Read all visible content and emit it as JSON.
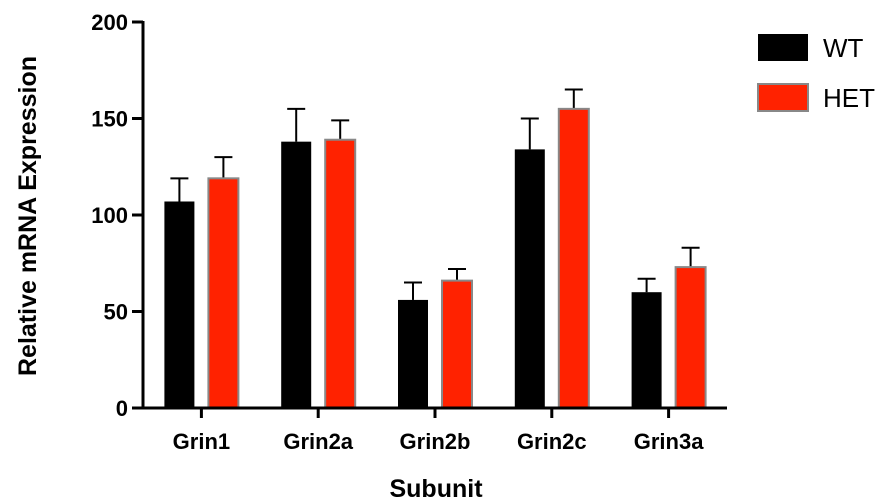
{
  "chart_data": {
    "type": "bar",
    "title": "",
    "xlabel": "Subunit",
    "ylabel": "Relative mRNA Expression",
    "ylim": [
      0,
      200
    ],
    "yticks": [
      "0",
      "50",
      "100",
      "150",
      "200"
    ],
    "categories": [
      "Grin1",
      "Grin2a",
      "Grin2b",
      "Grin2c",
      "Grin3a"
    ],
    "series": [
      {
        "name": "WT",
        "color": "#000000",
        "values": [
          107,
          138,
          56,
          134,
          60
        ],
        "errors": [
          12,
          17,
          9,
          16,
          7
        ]
      },
      {
        "name": "HET",
        "color": "#ff2200",
        "values": [
          119,
          139,
          66,
          155,
          73
        ],
        "errors": [
          11,
          10,
          6,
          10,
          10
        ]
      }
    ],
    "legend_position": "top-right",
    "error_bars": "upper"
  }
}
